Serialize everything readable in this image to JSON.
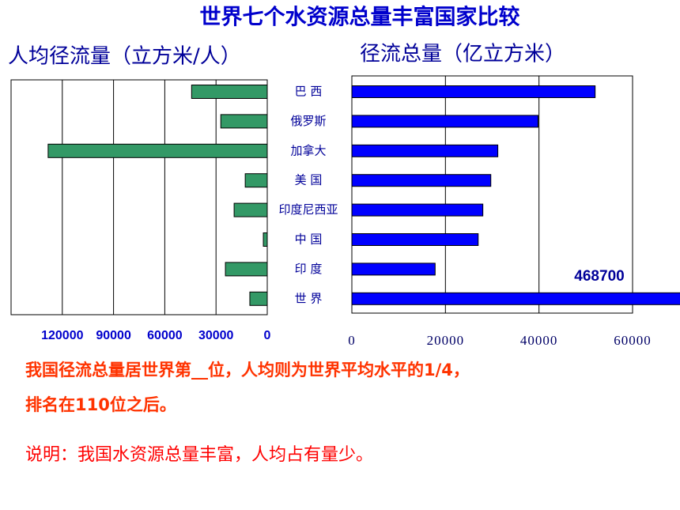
{
  "title": "世界七个水资源总量丰富国家比较",
  "notes": [
    "我国径流总量居世界第__位，人均则为世界平均水平的1/4，",
    "排名在110位之后。"
  ],
  "explanation": "说明：我国水资源总量丰富，人均占有量少。",
  "chart_data": [
    {
      "type": "bar",
      "title": "人均径流量（立方米/人）",
      "categories": [
        "巴 西",
        "俄罗斯",
        "加拿大",
        "美 国",
        "印度尼西亚",
        "中 国",
        "印 度",
        "世 界"
      ],
      "values": [
        44300,
        27200,
        128300,
        12900,
        19400,
        2300,
        24500,
        10200
      ],
      "color": "#339966",
      "xlim": [
        0,
        150000
      ],
      "reversed": true,
      "xticks": [
        0,
        30000,
        60000,
        90000,
        120000
      ],
      "grid": true
    },
    {
      "type": "bar",
      "title": "径流总量（亿立方米）",
      "values": [
        52000,
        39800,
        31200,
        29700,
        28000,
        27000,
        17800,
        468700
      ],
      "color": "#0000ff",
      "xlim": [
        0,
        60000
      ],
      "xticks": [
        0,
        20000,
        40000,
        60000
      ],
      "grid": true,
      "labeled": [
        7
      ]
    }
  ]
}
